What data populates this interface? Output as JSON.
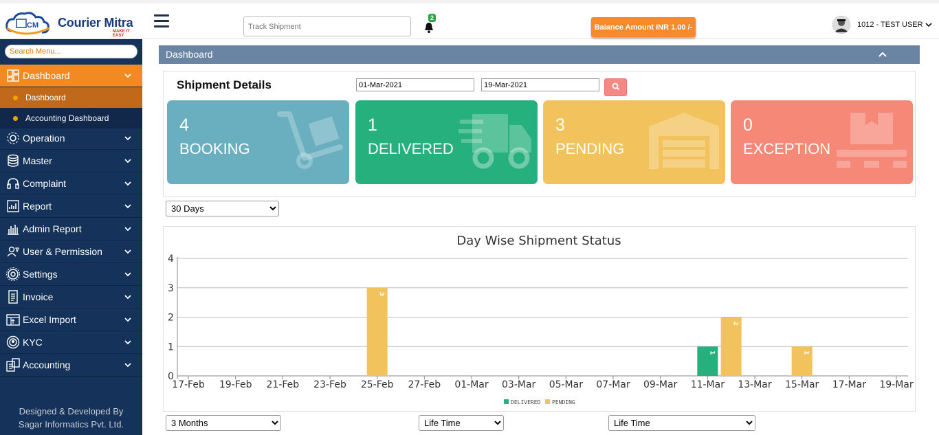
{
  "app": {
    "brand": "Courier Mitra",
    "tagline": "MAKE IT EASY",
    "logo_letters": "CM"
  },
  "header": {
    "track_placeholder": "Track Shipment",
    "notification_count": "2",
    "balance_label": "Balance Amount INR 1.00 /-",
    "user_label": "1012 - TEST USER"
  },
  "sidebar": {
    "search_placeholder": "Search Menu...",
    "items": [
      {
        "label": "Dashboard",
        "icon": "dashboard-icon",
        "active": true
      },
      {
        "label": "Operation",
        "icon": "gear-network-icon"
      },
      {
        "label": "Master",
        "icon": "database-icon"
      },
      {
        "label": "Complaint",
        "icon": "headset-icon"
      },
      {
        "label": "Report",
        "icon": "report-chart-icon"
      },
      {
        "label": "Admin Report",
        "icon": "admin-report-icon"
      },
      {
        "label": "User & Permission",
        "icon": "user-permission-icon"
      },
      {
        "label": "Settings",
        "icon": "settings-icon"
      },
      {
        "label": "Invoice",
        "icon": "invoice-icon"
      },
      {
        "label": "Excel Import",
        "icon": "excel-import-icon"
      },
      {
        "label": "KYC",
        "icon": "kyc-icon"
      },
      {
        "label": "Accounting",
        "icon": "accounting-icon"
      }
    ],
    "subitems": [
      {
        "label": "Dashboard",
        "active": true
      },
      {
        "label": "Accounting Dashboard"
      }
    ],
    "credit_line1": "Designed & Developed By",
    "credit_line2": "Sagar Informatics Pvt. Ltd."
  },
  "panel": {
    "title": "Dashboard"
  },
  "shipment": {
    "title": "Shipment Details",
    "from_date": "01-Mar-2021",
    "to_date": "19-Mar-2021",
    "cards": [
      {
        "count": "4",
        "label": "BOOKING",
        "color": "#6aafbf",
        "icon": "trolley-box-icon"
      },
      {
        "count": "1",
        "label": "DELIVERED",
        "color": "#25b07d",
        "icon": "truck-icon"
      },
      {
        "count": "3",
        "label": "PENDING",
        "color": "#f2c25c",
        "icon": "warehouse-icon"
      },
      {
        "count": "0",
        "label": "EXCEPTION",
        "color": "#f68877",
        "icon": "box-pallet-icon"
      }
    ]
  },
  "filters": {
    "range_top": "30 Days",
    "range_bottom_1": "3 Months",
    "range_bottom_2": "Life Time",
    "range_bottom_3": "Life Time"
  },
  "chart_data": {
    "type": "bar",
    "title": "Day Wise Shipment Status",
    "x_tick_labels": [
      "17-Feb",
      "19-Feb",
      "21-Feb",
      "23-Feb",
      "25-Feb",
      "27-Feb",
      "01-Mar",
      "03-Mar",
      "05-Mar",
      "07-Mar",
      "09-Mar",
      "11-Mar",
      "13-Mar",
      "15-Mar",
      "17-Mar",
      "19-Mar"
    ],
    "ylim": [
      0,
      4
    ],
    "y_ticks": [
      0,
      1,
      2,
      3,
      4
    ],
    "grid": true,
    "legend_position": "bottom-center",
    "series": [
      {
        "name": "DELIVERED",
        "color": "#25b07d",
        "points": [
          {
            "x": "11-Mar",
            "y": 1
          }
        ]
      },
      {
        "name": "PENDING",
        "color": "#f2c25c",
        "points": [
          {
            "x": "25-Feb",
            "y": 3
          },
          {
            "x": "12-Mar",
            "y": 2
          },
          {
            "x": "15-Mar",
            "y": 1
          }
        ]
      }
    ]
  }
}
